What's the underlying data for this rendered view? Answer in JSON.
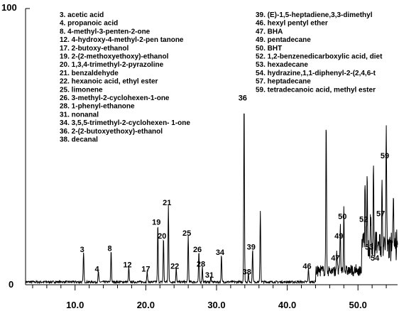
{
  "chart_data": {
    "type": "line",
    "title": "",
    "xlabel": "",
    "ylabel": "",
    "xlim": [
      3.0,
      55.6
    ],
    "ylim": [
      0,
      100
    ],
    "x_ticks": [
      10.0,
      20.0,
      30.0,
      40.0,
      50.0
    ],
    "x_tick_labels": [
      "10.0",
      "20.0",
      "30.0",
      "40.0",
      "50.0"
    ],
    "y_tick_labels": [
      "100",
      "0"
    ],
    "grid": false,
    "legend_left": [
      "3. acetic acid",
      " 4. propanoic acid",
      " 8. 4-methyl-3-penten-2-one",
      "12. 4-hydroxy-4-methyl-2-pen  tanone",
      "17. 2-butoxy-ethanol",
      "19. 2-(2-methoxyethoxy)-ethanol",
      "20. 1,3,4-trimethyl-2-pyrazoline",
      "21. benzaldehyde",
      "22. hexanoic acid, ethyl ester",
      "25. limonene",
      "26. 3-methyl-2-cyclohexen-1-one",
      "28. 1-phenyl-ethanone",
      "31. nonanal",
      "34. 3,5,5-trimethyl-2-cyclohexen-  1-one",
      "36. 2-(2-butoxyethoxy)-ethanol",
      "38. decanal"
    ],
    "legend_right": [
      "39. (E)-1,5-heptadiene,3,3-dimethyl",
      "46. hexyl pentyl ether",
      "47. BHA",
      "49. pentadecane",
      "50. BHT",
      "52. 1,2-benzenedicarboxylic acid, diet",
      "53. hexadecane",
      "54. hydrazine,1,1-diphenyl-2-(2,4,6-t",
      "57. heptadecane",
      "59. tetradecanoic acid, methyl ester"
    ],
    "peaks": [
      {
        "label": "3",
        "x": 11.2,
        "y": 11.0
      },
      {
        "label": "4",
        "x": 13.3,
        "y": 4.0
      },
      {
        "label": "8",
        "x": 15.1,
        "y": 11.5
      },
      {
        "label": "12",
        "x": 17.6,
        "y": 5.5
      },
      {
        "label": "17",
        "x": 20.2,
        "y": 4.0
      },
      {
        "label": "19",
        "x": 21.7,
        "y": 21.0
      },
      {
        "label": "20",
        "x": 22.5,
        "y": 16.0
      },
      {
        "label": "21",
        "x": 23.2,
        "y": 28.0
      },
      {
        "label": "22",
        "x": 24.3,
        "y": 5.0
      },
      {
        "label": "25",
        "x": 26.0,
        "y": 17.0
      },
      {
        "label": "26",
        "x": 27.5,
        "y": 11.0
      },
      {
        "label": "28",
        "x": 28.0,
        "y": 5.8
      },
      {
        "label": "31",
        "x": 29.2,
        "y": 1.8
      },
      {
        "label": "34",
        "x": 30.7,
        "y": 10.0
      },
      {
        "label": "36",
        "x": 33.9,
        "y": 66.0
      },
      {
        "label": "38",
        "x": 34.5,
        "y": 3.0
      },
      {
        "label": "39",
        "x": 35.1,
        "y": 12.0
      },
      {
        "label": "46",
        "x": 43.0,
        "y": 5.0
      },
      {
        "label": "47",
        "x": 47.0,
        "y": 8.0
      },
      {
        "label": "49",
        "x": 47.5,
        "y": 16.0
      },
      {
        "label": "50",
        "x": 48.0,
        "y": 23.0
      },
      {
        "label": "52",
        "x": 51.0,
        "y": 22.0
      },
      {
        "label": "53",
        "x": 51.8,
        "y": 12.0
      },
      {
        "label": "54",
        "x": 52.6,
        "y": 8.0
      },
      {
        "label": "57",
        "x": 53.4,
        "y": 24.0
      },
      {
        "label": "59",
        "x": 54.0,
        "y": 45.0
      }
    ],
    "extra_peaks": [
      {
        "x": 36.2,
        "y": 26.0
      },
      {
        "x": 45.5,
        "y": 54.0
      },
      {
        "x": 51.3,
        "y": 29.0
      },
      {
        "x": 52.2,
        "y": 27.0
      },
      {
        "x": 55.0,
        "y": 19.0
      }
    ]
  }
}
